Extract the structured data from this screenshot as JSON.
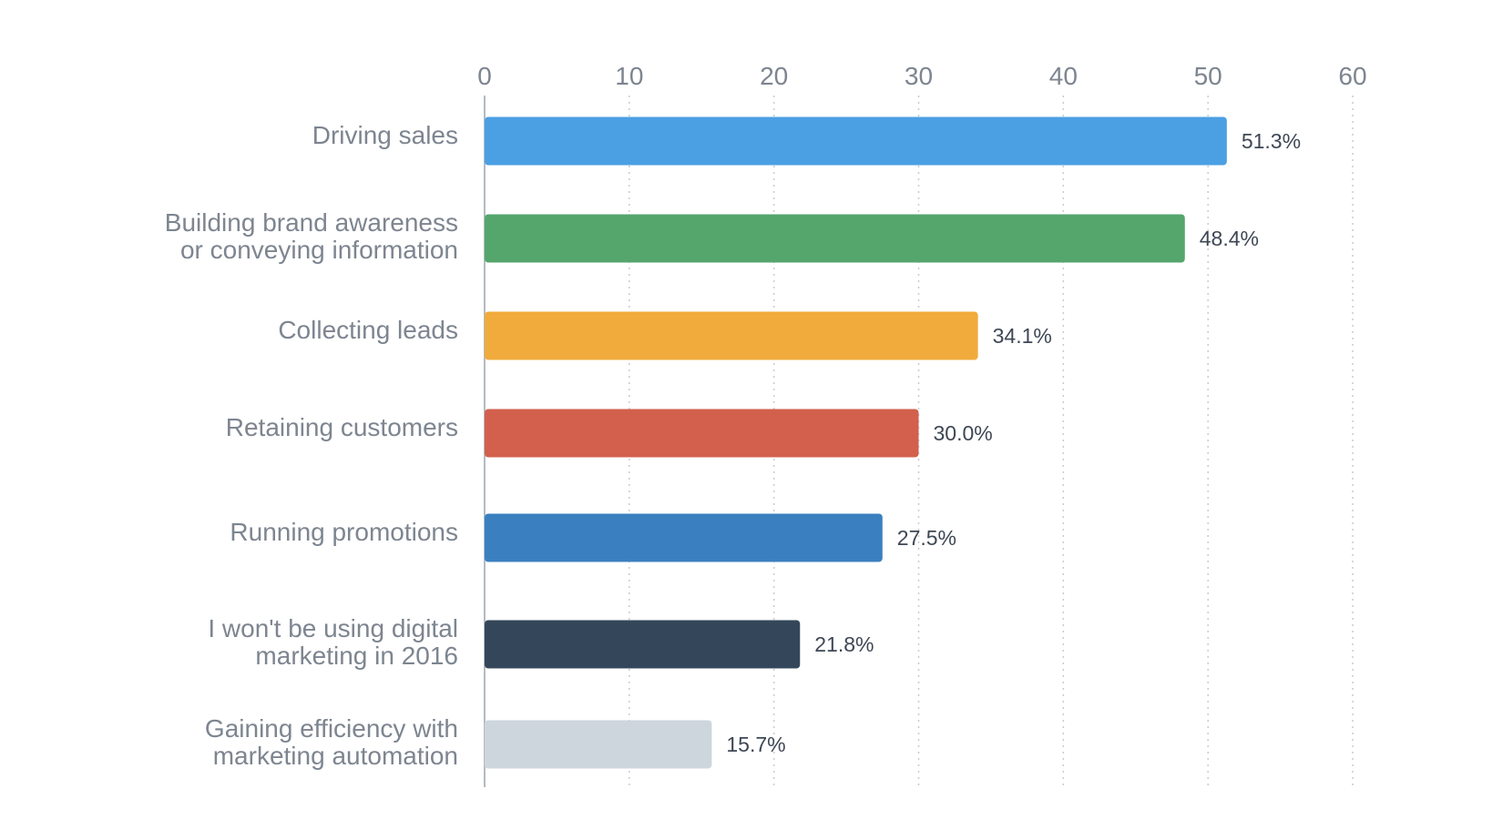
{
  "chart_data": {
    "type": "bar",
    "orientation": "horizontal",
    "title": "",
    "xlabel": "",
    "ylabel": "",
    "xlim": [
      0,
      60
    ],
    "ticks": [
      0,
      10,
      20,
      30,
      40,
      50,
      60
    ],
    "grid": true,
    "categories": [
      [
        "Driving sales"
      ],
      [
        "Building brand awareness",
        "or conveying information"
      ],
      [
        "Collecting leads"
      ],
      [
        "Retaining customers"
      ],
      [
        "Running promotions"
      ],
      [
        "I won't be using digital",
        "marketing in 2016"
      ],
      [
        "Gaining efficiency with",
        "marketing automation"
      ]
    ],
    "values": [
      51.3,
      48.4,
      34.1,
      30.0,
      27.5,
      21.8,
      15.7
    ],
    "value_labels": [
      "51.3%",
      "48.4%",
      "34.1%",
      "30.0%",
      "27.5%",
      "21.8%",
      "15.7%"
    ],
    "colors": [
      "#4b9fe3",
      "#54a66d",
      "#f0ab3c",
      "#d2604d",
      "#3a80c0",
      "#34475a",
      "#cdd6dd"
    ]
  }
}
